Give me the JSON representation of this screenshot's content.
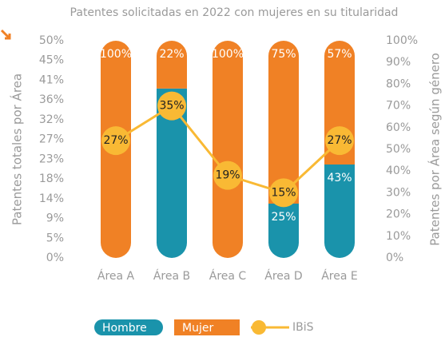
{
  "chart_data": {
    "type": "bar",
    "title": "Patentes solicitadas en 2022 con mujeres en su titularidad",
    "ylabel": "Patentes totales por Área",
    "y2label": "Patentes por Área según género",
    "categories": [
      "Área A",
      "Área B",
      "Área C",
      "Área D",
      "Área E"
    ],
    "stacked": true,
    "series": [
      {
        "name": "Hombre",
        "color": "#1a93ab",
        "axis": "y2",
        "values": [
          0,
          78,
          0,
          25,
          43
        ],
        "value_labels": [
          null,
          "78%",
          null,
          "25%",
          "43%"
        ]
      },
      {
        "name": "Mujer",
        "color": "#f08125",
        "axis": "y2",
        "values": [
          100,
          22,
          100,
          75,
          57
        ],
        "value_labels": [
          "100%",
          "22%",
          "100%",
          "75%",
          "57%"
        ]
      },
      {
        "name": "IBiS",
        "type": "line",
        "color": "#f9b934",
        "values": [
          27,
          35,
          19,
          15,
          27
        ],
        "value_labels": [
          "27%",
          "35%",
          "19%",
          "15%",
          "27%"
        ]
      }
    ],
    "ylim": [
      0,
      50
    ],
    "yticks": [
      {
        "value": 0,
        "label": "0%"
      },
      {
        "value": 4.545,
        "label": "5%"
      },
      {
        "value": 9.091,
        "label": "9%"
      },
      {
        "value": 13.636,
        "label": "14%"
      },
      {
        "value": 18.182,
        "label": "18%"
      },
      {
        "value": 22.727,
        "label": "23%"
      },
      {
        "value": 27.273,
        "label": "27%"
      },
      {
        "value": 31.818,
        "label": "32%"
      },
      {
        "value": 36.364,
        "label": "36%"
      },
      {
        "value": 40.909,
        "label": "41%"
      },
      {
        "value": 45.455,
        "label": "45%"
      },
      {
        "value": 50,
        "label": "50%"
      }
    ],
    "y2lim": [
      0,
      100
    ],
    "y2ticks": [
      {
        "value": 0,
        "label": "0%"
      },
      {
        "value": 10,
        "label": "10%"
      },
      {
        "value": 20,
        "label": "20%"
      },
      {
        "value": 30,
        "label": "30%"
      },
      {
        "value": 40,
        "label": "40%"
      },
      {
        "value": 50,
        "label": "50%"
      },
      {
        "value": 60,
        "label": "60%"
      },
      {
        "value": 70,
        "label": "70%"
      },
      {
        "value": 80,
        "label": "80%"
      },
      {
        "value": 90,
        "label": "90%"
      },
      {
        "value": 100,
        "label": "100%"
      }
    ],
    "grid": false
  }
}
